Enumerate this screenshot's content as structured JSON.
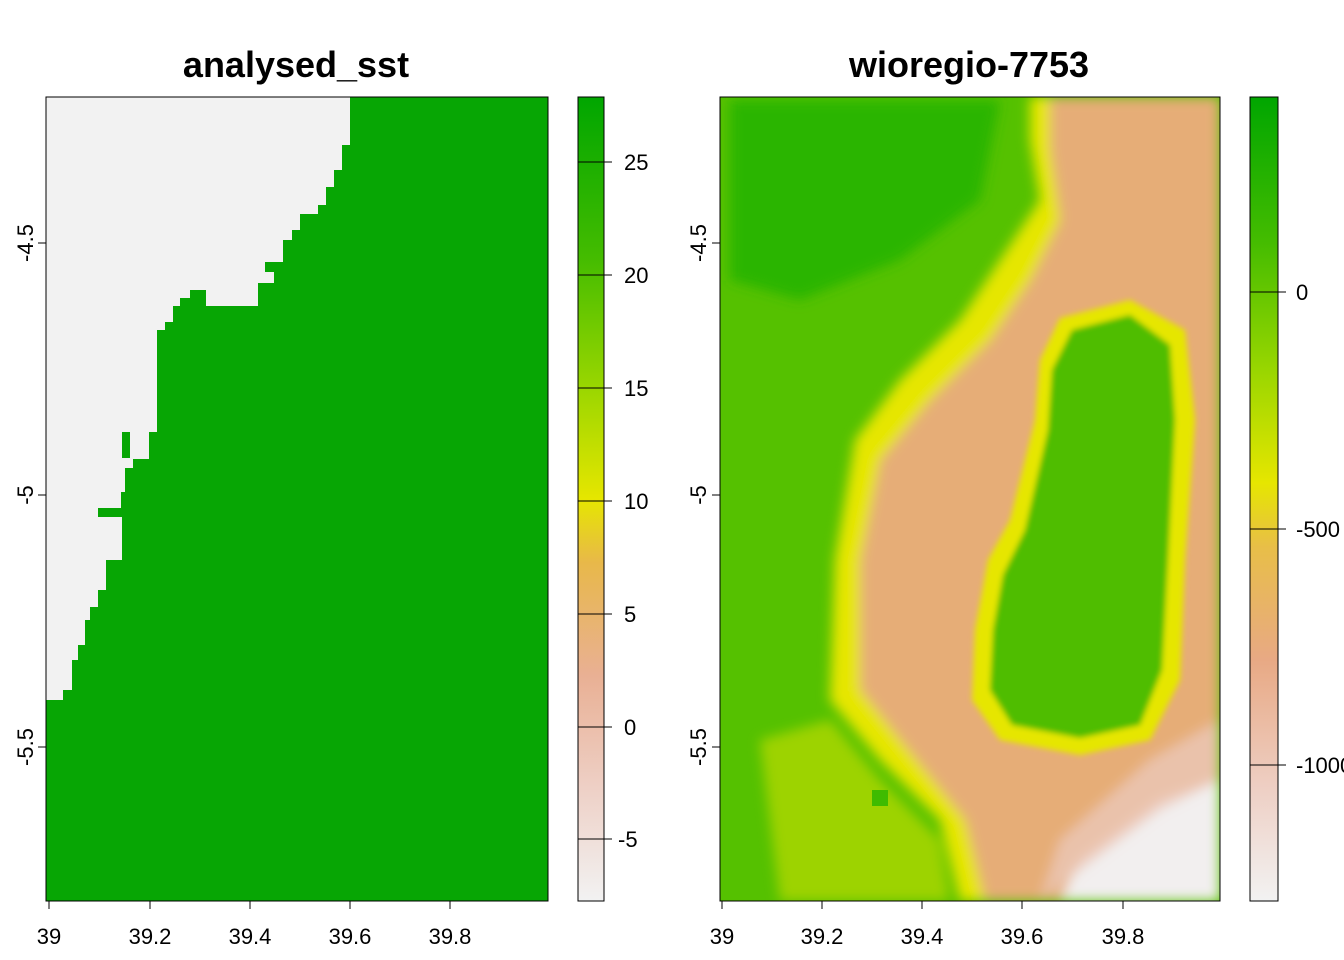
{
  "colors": {
    "no_data": "#f2f2f2",
    "ramp": [
      "#f2f2f2",
      "#edbeb0",
      "#e8a77d",
      "#e8c233",
      "#e6e600",
      "#7fd100",
      "#3ebb00",
      "#00a600"
    ]
  },
  "panels": [
    {
      "title": "analysed_sst",
      "x_ticks": [
        "39",
        "39.2",
        "39.4",
        "39.6",
        "39.8"
      ],
      "y_ticks": [
        "-4.5",
        "-5",
        "-5.5"
      ],
      "legend_ticks": [
        "25",
        "20",
        "15",
        "10",
        "5",
        "0",
        "-5"
      ]
    },
    {
      "title": "wioregio-7753",
      "x_ticks": [
        "39",
        "39.2",
        "39.4",
        "39.6",
        "39.8"
      ],
      "y_ticks": [
        "-4.5",
        "-5",
        "-5.5"
      ],
      "legend_ticks": [
        "0",
        "-500",
        "-1000"
      ]
    }
  ],
  "chart_data": [
    {
      "type": "heatmap",
      "title": "analysed_sst",
      "x_range": [
        39.0,
        40.0
      ],
      "y_range": [
        -5.8,
        -4.2
      ],
      "value_range": [
        -8,
        28
      ],
      "legend_ticks": [
        25,
        20,
        15,
        10,
        5,
        0,
        -5
      ],
      "land_fraction_by_lat": [
        [
          -4.2,
          0.61
        ],
        [
          -4.3,
          0.59
        ],
        [
          -4.4,
          0.55
        ],
        [
          -4.5,
          0.49
        ],
        [
          -4.6,
          0.43
        ],
        [
          -4.7,
          0.31
        ],
        [
          -4.8,
          0.22
        ],
        [
          -4.9,
          0.2
        ],
        [
          -5.0,
          0.16
        ],
        [
          -5.1,
          0.15
        ],
        [
          -5.2,
          0.12
        ],
        [
          -5.3,
          0.07
        ],
        [
          -5.4,
          0.04
        ],
        [
          -5.5,
          0.0
        ],
        [
          -5.8,
          0.0
        ]
      ],
      "sea_value": 27.5
    },
    {
      "type": "heatmap",
      "title": "wioregio-7753",
      "x_range": [
        39.0,
        40.0
      ],
      "y_range": [
        -5.8,
        -4.2
      ],
      "value_range": [
        -1300,
        400
      ],
      "legend_ticks": [
        0,
        -500,
        -1000
      ]
    }
  ]
}
